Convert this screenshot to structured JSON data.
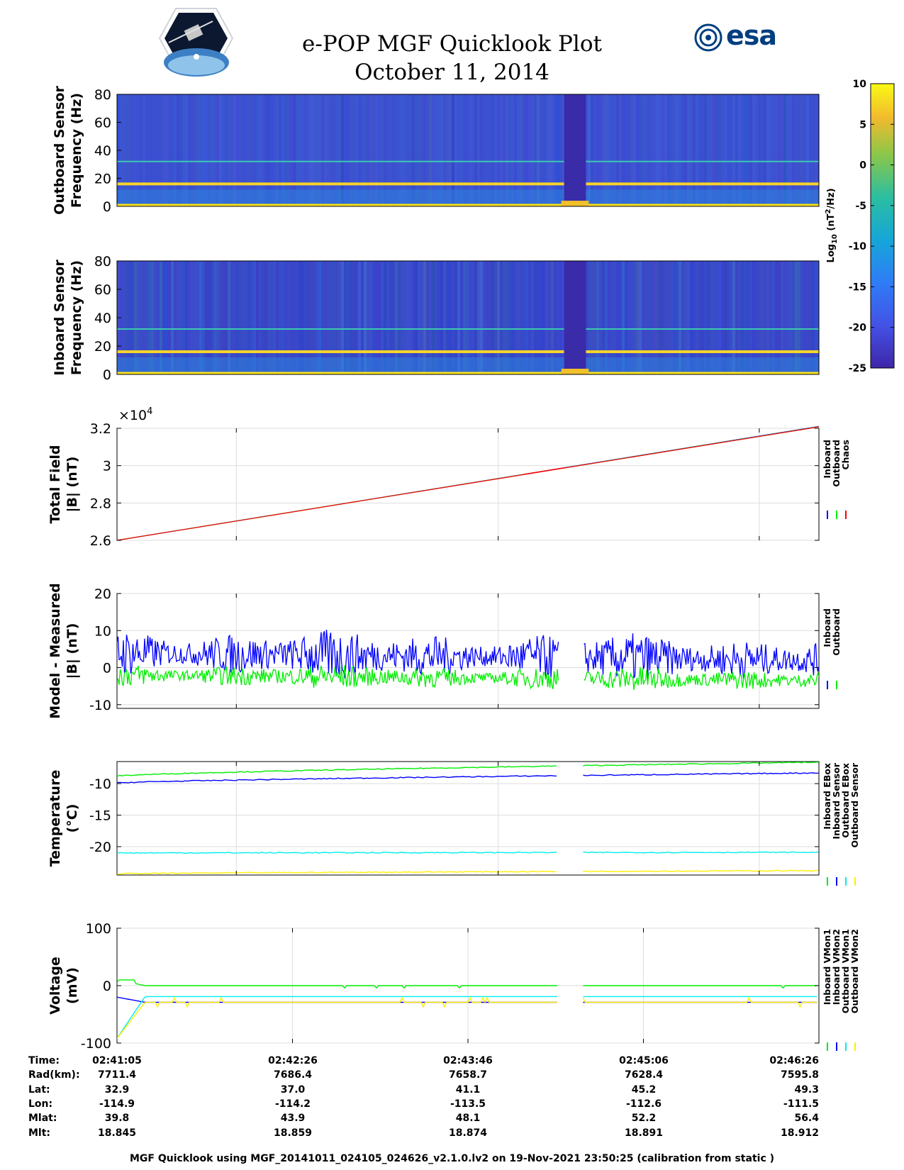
{
  "header": {
    "title": "e-POP MGF Quicklook Plot",
    "date": "October 11, 2014",
    "mission_logo": "cassiope-satellite-logo",
    "agency_logo_text": "esa"
  },
  "colorbar": {
    "label_main": "Log",
    "label_sub": "10",
    "label_unit": " (nT",
    "label_sup": "2",
    "label_end": "/Hz)",
    "ticks": [
      "10",
      "5",
      "0",
      "-5",
      "-10",
      "-15",
      "-20",
      "-25"
    ],
    "range": [
      -25,
      10
    ],
    "colormap": "parula"
  },
  "chart_data": [
    {
      "type": "heatmap",
      "name": "outboard-spectrogram",
      "ylabel": [
        "Outboard Sensor",
        "Frequency (Hz)"
      ],
      "ylim": [
        0,
        80
      ],
      "yticks": [
        "80",
        "60",
        "40",
        "20",
        "0"
      ],
      "tones_hz": [
        0,
        16,
        32
      ],
      "data_gap_fraction": [
        0.637,
        0.668
      ]
    },
    {
      "type": "heatmap",
      "name": "inboard-spectrogram",
      "ylabel": [
        "Inboard Sensor",
        "Frequency (Hz)"
      ],
      "ylim": [
        0,
        80
      ],
      "yticks": [
        "80",
        "60",
        "40",
        "20",
        "0"
      ],
      "tones_hz": [
        0,
        16,
        32
      ],
      "data_gap_fraction": [
        0.637,
        0.668
      ]
    },
    {
      "type": "line",
      "name": "total-field",
      "ylabel": [
        "Total Field",
        "|B| (nT)"
      ],
      "exponent_base": "×10",
      "exponent_power": "4",
      "ylim": [
        2.6,
        3.2
      ],
      "yticks": [
        "3.2",
        "3",
        "2.8",
        "2.6"
      ],
      "series": [
        {
          "name": "Inboard",
          "color": "#0000ff",
          "start": 2.6,
          "end": 3.21
        },
        {
          "name": "Outboard",
          "color": "#00ee00",
          "start": 2.6,
          "end": 3.21
        },
        {
          "name": "Chaos",
          "color": "#ff0000",
          "start": 2.6,
          "end": 3.21
        }
      ]
    },
    {
      "type": "line",
      "name": "model-minus-measured",
      "ylabel": [
        "Model - Measured",
        "|B| (nT)"
      ],
      "ylim": [
        -11,
        20
      ],
      "yticks": [
        "20",
        "10",
        "0",
        "-10"
      ],
      "series": [
        {
          "name": "Inboard",
          "color": "#0000ff",
          "mean": 4,
          "amplitude": 8
        },
        {
          "name": "Outboard",
          "color": "#00ee00",
          "mean": -2,
          "amplitude": 4
        }
      ],
      "data_gap_fraction": [
        0.63,
        0.664
      ]
    },
    {
      "type": "line",
      "name": "temperature",
      "ylabel": [
        "Temperature",
        "(°C)"
      ],
      "ylim": [
        -24.5,
        -6.5
      ],
      "yticks": [
        "-10",
        "-15",
        "-20"
      ],
      "series": [
        {
          "name": "Inboard EBox",
          "color": "#00ee00",
          "start": -8.8,
          "end": -6.6
        },
        {
          "name": "Inboard Sensor",
          "color": "#0000ff",
          "start": -9.9,
          "end": -8.3
        },
        {
          "name": "Outboard EBox",
          "color": "#00eeee",
          "start": -21.0,
          "end": -20.9
        },
        {
          "name": "Outboard Sensor",
          "color": "#ffee00",
          "start": -24.3,
          "end": -23.8
        }
      ],
      "data_gap_fraction": [
        0.63,
        0.664
      ]
    },
    {
      "type": "line",
      "name": "voltage",
      "ylabel": [
        "Voltage",
        "(mV)"
      ],
      "ylim": [
        -100,
        100
      ],
      "yticks": [
        "100",
        "0",
        "-100"
      ],
      "series": [
        {
          "name": "Inboard VMon1",
          "color": "#00ee00",
          "start": 10,
          "level": 0
        },
        {
          "name": "Inboard VMon2",
          "color": "#0000ff",
          "start": -20,
          "level": -29
        },
        {
          "name": "Outboard VMon1",
          "color": "#00eeee",
          "start": -92,
          "level": -19
        },
        {
          "name": "Outboard VMon2",
          "color": "#ffee00",
          "start": -92,
          "level": -29
        }
      ],
      "data_gap_fraction": [
        0.63,
        0.664
      ]
    }
  ],
  "ephemeris": {
    "row_labels": [
      "Time:",
      "Rad(km):",
      "Lat:",
      "Lon:",
      "Mlat:",
      "Mlt:"
    ],
    "columns": [
      [
        "02:41:05",
        "7711.4",
        "32.9",
        "-114.9",
        "39.8",
        "18.845"
      ],
      [
        "02:42:26",
        "7686.4",
        "37.0",
        "-114.2",
        "43.9",
        "18.859"
      ],
      [
        "02:43:46",
        "7658.7",
        "41.1",
        "-113.5",
        "48.1",
        "18.874"
      ],
      [
        "02:45:06",
        "7628.4",
        "45.2",
        "-112.6",
        "52.2",
        "18.891"
      ],
      [
        "02:46:26",
        "7595.8",
        "49.3",
        "-111.5",
        "56.4",
        "18.912"
      ]
    ]
  },
  "footer": "MGF Quicklook using MGF_20141011_024105_024626_v2.1.0.lv2 on 19-Nov-2021 23:50:25 (calibration from static )"
}
